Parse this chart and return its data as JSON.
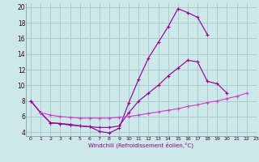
{
  "xlabel": "Windchill (Refroidissement éolien,°C)",
  "bg_color": "#cce8e8",
  "grid_color": "#aacccc",
  "line_color1": "#990099",
  "line_color2": "#cc44cc",
  "xlim": [
    -0.5,
    23
  ],
  "ylim": [
    3.5,
    20.5
  ],
  "yticks": [
    4,
    6,
    8,
    10,
    12,
    14,
    16,
    18,
    20
  ],
  "xticks": [
    0,
    1,
    2,
    3,
    4,
    5,
    6,
    7,
    8,
    9,
    10,
    11,
    12,
    13,
    14,
    15,
    16,
    17,
    18,
    19,
    20,
    21,
    22,
    23
  ],
  "line1_x": [
    0,
    1,
    2,
    3,
    4,
    5,
    6,
    7,
    8,
    9,
    10,
    11,
    12,
    13,
    14,
    15,
    16,
    17,
    18,
    19,
    20,
    21,
    22
  ],
  "line1_y": [
    8.0,
    6.5,
    5.2,
    5.1,
    5.0,
    4.8,
    4.7,
    4.1,
    3.9,
    4.5,
    7.8,
    10.8,
    13.5,
    15.5,
    17.5,
    19.8,
    19.3,
    18.7,
    16.5,
    null,
    null,
    null,
    null
  ],
  "line2_x": [
    0,
    1,
    2,
    3,
    4,
    5,
    6,
    7,
    8,
    9,
    10,
    11,
    12,
    13,
    14,
    15,
    16,
    17,
    18,
    19,
    20,
    21,
    22
  ],
  "line2_y": [
    8.0,
    6.5,
    5.2,
    5.1,
    4.9,
    4.8,
    4.7,
    4.6,
    4.6,
    4.8,
    6.5,
    8.0,
    9.0,
    10.0,
    11.2,
    12.2,
    13.2,
    13.0,
    10.5,
    10.2,
    9.0,
    null,
    null
  ],
  "line3_x": [
    1,
    2,
    3,
    4,
    5,
    6,
    7,
    8,
    9,
    10,
    11,
    12,
    13,
    14,
    15,
    16,
    17,
    18,
    19,
    20,
    21,
    22
  ],
  "line3_y": [
    6.5,
    6.2,
    6.0,
    5.9,
    5.8,
    5.8,
    5.8,
    5.8,
    5.9,
    6.0,
    6.2,
    6.4,
    6.6,
    6.8,
    7.0,
    7.3,
    7.5,
    7.8,
    8.0,
    8.3,
    8.6,
    9.0
  ]
}
